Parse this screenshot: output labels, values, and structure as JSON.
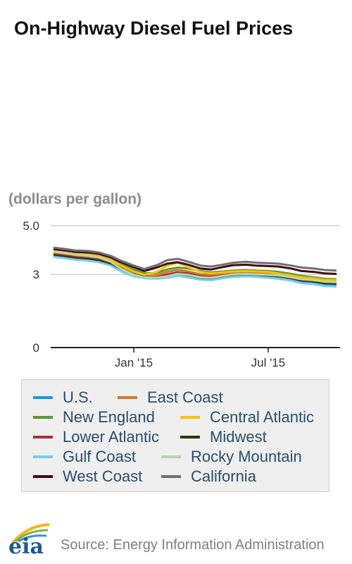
{
  "title": "On-Highway Diesel Fuel Prices",
  "units": "(dollars per gallon)",
  "source": "Source: Energy Information Administration",
  "logo_text": "eia",
  "chart_data": {
    "type": "line",
    "title": "On-Highway Diesel Fuel Prices",
    "ylabel": "(dollars per gallon)",
    "xlabel": "",
    "ylim": [
      0,
      5
    ],
    "yticks": [
      {
        "value": 5,
        "label": "5.0"
      },
      {
        "value": 3,
        "label": "3"
      },
      {
        "value": 0,
        "label": "0"
      }
    ],
    "xticks": [
      {
        "x": "2015-01-01",
        "label": "Jan '15"
      },
      {
        "x": "2015-07-01",
        "label": "Jul '15"
      }
    ],
    "x": [
      "2014-09-15",
      "2014-10-01",
      "2014-10-15",
      "2014-11-01",
      "2014-11-15",
      "2014-12-01",
      "2014-12-15",
      "2015-01-01",
      "2015-01-15",
      "2015-02-01",
      "2015-02-15",
      "2015-03-01",
      "2015-03-15",
      "2015-04-01",
      "2015-04-15",
      "2015-05-01",
      "2015-05-15",
      "2015-06-01",
      "2015-06-15",
      "2015-07-01",
      "2015-07-15",
      "2015-08-01",
      "2015-08-15",
      "2015-09-01",
      "2015-09-15",
      "2015-10-01"
    ],
    "series": [
      {
        "name": "U.S.",
        "color": "#1a9bd7",
        "values": [
          3.8,
          3.74,
          3.68,
          3.64,
          3.58,
          3.45,
          3.2,
          3.0,
          2.9,
          2.85,
          2.92,
          3.02,
          2.96,
          2.84,
          2.82,
          2.9,
          2.96,
          2.98,
          2.97,
          2.94,
          2.9,
          2.82,
          2.72,
          2.68,
          2.6,
          2.58
        ]
      },
      {
        "name": "East Coast",
        "color": "#c97a2e",
        "values": [
          3.92,
          3.86,
          3.78,
          3.74,
          3.68,
          3.52,
          3.3,
          3.08,
          2.92,
          2.96,
          3.1,
          3.18,
          3.12,
          3.0,
          2.98,
          3.05,
          3.06,
          3.07,
          3.05,
          3.02,
          2.98,
          2.9,
          2.8,
          2.76,
          2.7,
          2.68
        ]
      },
      {
        "name": "New England",
        "color": "#5e9732",
        "values": [
          4.02,
          3.96,
          3.9,
          3.86,
          3.8,
          3.66,
          3.42,
          3.2,
          3.04,
          3.06,
          3.2,
          3.28,
          3.24,
          3.14,
          3.08,
          3.12,
          3.16,
          3.18,
          3.16,
          3.14,
          3.1,
          3.02,
          2.94,
          2.88,
          2.82,
          2.8
        ]
      },
      {
        "name": "Central Atlantic",
        "color": "#f7c200",
        "values": [
          4.0,
          3.94,
          3.86,
          3.82,
          3.76,
          3.6,
          3.36,
          3.12,
          2.98,
          3.1,
          3.35,
          3.48,
          3.3,
          3.1,
          3.04,
          3.08,
          3.12,
          3.14,
          3.12,
          3.1,
          3.04,
          2.96,
          2.88,
          2.84,
          2.78,
          2.76
        ]
      },
      {
        "name": "Lower Atlantic",
        "color": "#a2333d",
        "values": [
          3.84,
          3.78,
          3.7,
          3.66,
          3.6,
          3.44,
          3.2,
          3.0,
          2.86,
          2.88,
          3.0,
          3.08,
          3.04,
          2.92,
          2.9,
          2.96,
          3.0,
          3.02,
          3.0,
          2.96,
          2.92,
          2.84,
          2.74,
          2.7,
          2.64,
          2.62
        ]
      },
      {
        "name": "Midwest",
        "color": "#3a3200",
        "values": [
          3.78,
          3.72,
          3.66,
          3.62,
          3.56,
          3.42,
          3.18,
          2.98,
          2.9,
          2.86,
          2.9,
          3.0,
          2.96,
          2.86,
          2.84,
          2.92,
          2.98,
          3.0,
          2.98,
          2.96,
          2.94,
          2.86,
          2.76,
          2.72,
          2.64,
          2.62
        ]
      },
      {
        "name": "Gulf Coast",
        "color": "#74cdf5",
        "values": [
          3.72,
          3.66,
          3.6,
          3.56,
          3.5,
          3.36,
          3.12,
          2.92,
          2.84,
          2.82,
          2.86,
          2.94,
          2.88,
          2.78,
          2.76,
          2.84,
          2.9,
          2.92,
          2.9,
          2.86,
          2.82,
          2.74,
          2.64,
          2.6,
          2.52,
          2.5
        ]
      },
      {
        "name": "Rocky Mountain",
        "color": "#b7d8a8",
        "values": [
          3.92,
          3.86,
          3.8,
          3.76,
          3.7,
          3.52,
          3.22,
          2.98,
          2.88,
          2.86,
          2.92,
          3.02,
          2.98,
          2.88,
          2.86,
          2.94,
          3.0,
          3.02,
          3.0,
          2.98,
          2.96,
          2.88,
          2.8,
          2.76,
          2.7,
          2.68
        ]
      },
      {
        "name": "West Coast",
        "color": "#3f0a12",
        "values": [
          4.04,
          3.98,
          3.92,
          3.9,
          3.84,
          3.7,
          3.5,
          3.3,
          3.14,
          3.28,
          3.44,
          3.5,
          3.4,
          3.24,
          3.2,
          3.3,
          3.38,
          3.4,
          3.36,
          3.34,
          3.32,
          3.24,
          3.14,
          3.1,
          3.04,
          3.02
        ]
      },
      {
        "name": "California",
        "color": "#707070",
        "values": [
          4.1,
          4.04,
          3.98,
          3.96,
          3.9,
          3.76,
          3.56,
          3.36,
          3.22,
          3.38,
          3.58,
          3.64,
          3.52,
          3.36,
          3.32,
          3.4,
          3.48,
          3.52,
          3.48,
          3.46,
          3.44,
          3.36,
          3.28,
          3.24,
          3.18,
          3.16
        ]
      }
    ],
    "grid": true,
    "legend_position": "bottom"
  }
}
